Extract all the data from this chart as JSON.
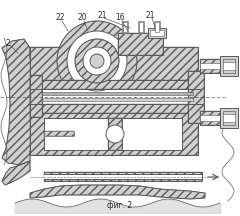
{
  "caption": "фиг. 2",
  "bg_color": "#ffffff",
  "line_color": "#5a5a5a",
  "label_color": "#2a2a2a",
  "figsize": [
    2.4,
    2.16
  ],
  "dpi": 100
}
